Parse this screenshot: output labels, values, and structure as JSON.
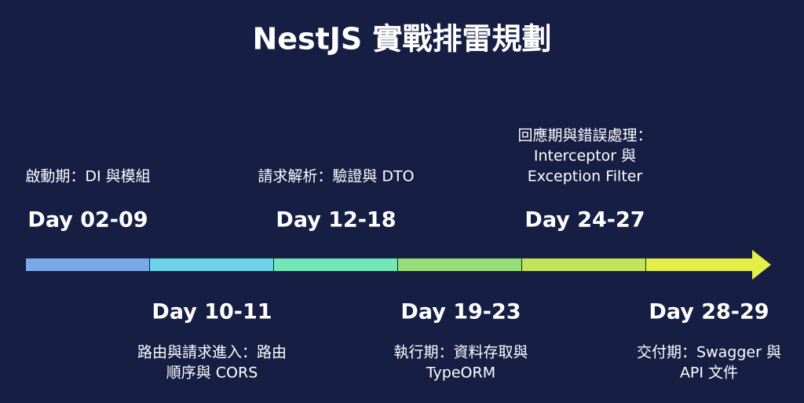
{
  "title": "NestJS 實戰排雷規劃",
  "phases": [
    {
      "day": "Day 02-09",
      "lines": [
        "啟動期：DI 與模組"
      ]
    },
    {
      "day": "Day 10-11",
      "lines": [
        "路由與請求進入：路由",
        "順序與 CORS"
      ]
    },
    {
      "day": "Day 12-18",
      "lines": [
        "請求解析：驗證與 DTO"
      ]
    },
    {
      "day": "Day 19-23",
      "lines": [
        "執行期：資料存取與",
        "TypeORM"
      ]
    },
    {
      "day": "Day 24-27",
      "lines": [
        "回應期與錯誤處理：",
        "Interceptor 與",
        "Exception Filter"
      ]
    },
    {
      "day": "Day 28-29",
      "lines": [
        "交付期：Swagger 與",
        "API 文件"
      ]
    }
  ]
}
